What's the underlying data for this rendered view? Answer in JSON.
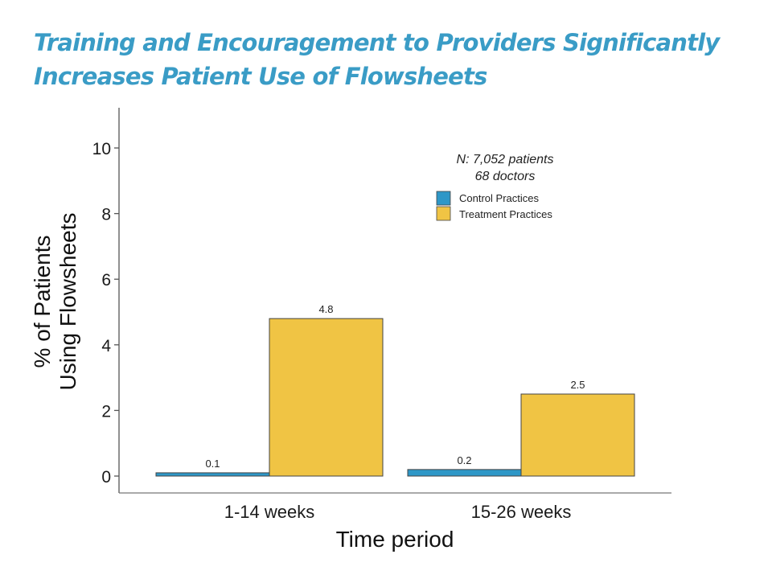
{
  "slide": {
    "title_line1": "Training and Encouragement to Providers Significantly",
    "title_line2": "Increases Patient Use of Flowsheets"
  },
  "chart_data": {
    "type": "bar",
    "title": "Training and Encouragement to Providers Significantly Increases Patient Use of Flowsheets",
    "xlabel": "Time period",
    "ylabel_lines": [
      "% of Patients",
      "Using Flowsheets"
    ],
    "ylabel": "% of Patients Using Flowsheets",
    "categories": [
      "1-14 weeks",
      "15-26 weeks"
    ],
    "series": [
      {
        "name": "Control Practices",
        "color": "#2e97c7",
        "values": [
          0.1,
          0.2
        ],
        "labels": [
          "0.1",
          "0.2"
        ]
      },
      {
        "name": "Treatment Practices",
        "color": "#f0c444",
        "values": [
          4.8,
          2.5
        ],
        "labels": [
          "4.8",
          "2.5"
        ]
      }
    ],
    "yticks": [
      0,
      2,
      4,
      6,
      8,
      10
    ],
    "ylim": [
      -0.5,
      11.2
    ],
    "grid": false,
    "legend": {
      "placement": "top-right",
      "note_lines": [
        "N: 7,052 patients",
        "68 doctors"
      ]
    }
  }
}
